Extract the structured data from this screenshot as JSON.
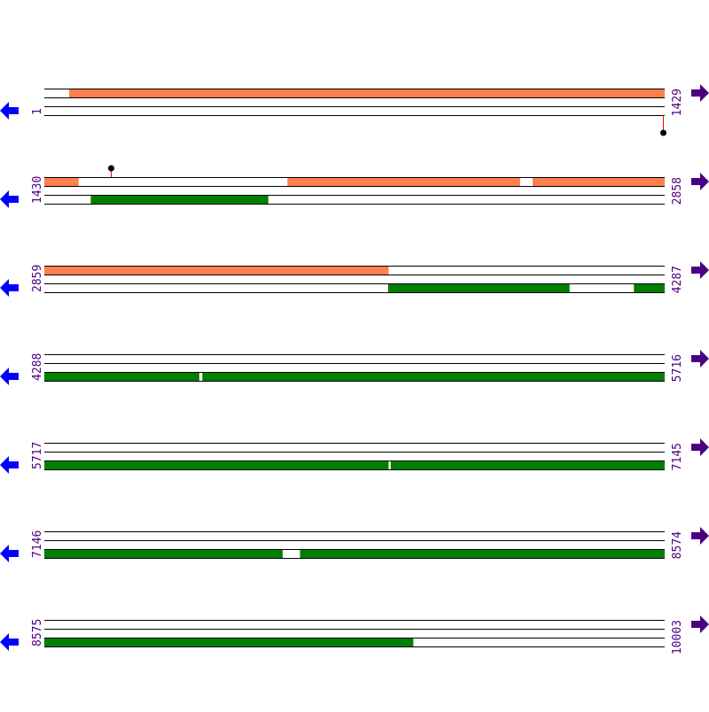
{
  "colors": {
    "forward_feature": "#ff7f50",
    "reverse_feature": "#008000",
    "label": "#4b0082",
    "left_arrow": "#0000ff",
    "right_arrow": "#4b0082",
    "marker_stem": "#ff0000",
    "marker_dot": "#000000"
  },
  "sequence_length": 10003,
  "rows": [
    {
      "start": "1",
      "end": "1429",
      "s": 1,
      "e": 1429,
      "top": [
        [
          58,
          1429
        ]
      ],
      "bottom": [],
      "markers": [
        {
          "pos": 1425,
          "strand": "bottom"
        }
      ]
    },
    {
      "start": "1430",
      "end": "2858",
      "s": 1430,
      "e": 2858,
      "top": [
        [
          1430,
          1508
        ],
        [
          1990,
          2525
        ],
        [
          2555,
          2858
        ]
      ],
      "bottom": [
        [
          1537,
          1945
        ]
      ],
      "markers": [
        {
          "pos": 1583,
          "strand": "top"
        }
      ]
    },
    {
      "start": "2859",
      "end": "4287",
      "s": 2859,
      "e": 4287,
      "top": [
        [
          2859,
          3651
        ]
      ],
      "bottom": [
        [
          3651,
          4068
        ],
        [
          4217,
          4287
        ]
      ],
      "markers": []
    },
    {
      "start": "4288",
      "end": "5716",
      "s": 4288,
      "e": 5716,
      "top": [],
      "bottom": [
        [
          4288,
          4644
        ],
        [
          4652,
          5716
        ]
      ],
      "markers": []
    },
    {
      "start": "5717",
      "end": "7145",
      "s": 5717,
      "e": 7145,
      "top": [],
      "bottom": [
        [
          5717,
          6509
        ],
        [
          6515,
          7145
        ]
      ],
      "markers": []
    },
    {
      "start": "7146",
      "end": "8574",
      "s": 7146,
      "e": 8574,
      "top": [],
      "bottom": [
        [
          7146,
          7694
        ],
        [
          7735,
          8574
        ]
      ],
      "markers": []
    },
    {
      "start": "8575",
      "end": "10003",
      "s": 8575,
      "e": 10003,
      "top": [],
      "bottom": [
        [
          8575,
          9424
        ]
      ],
      "markers": []
    }
  ]
}
